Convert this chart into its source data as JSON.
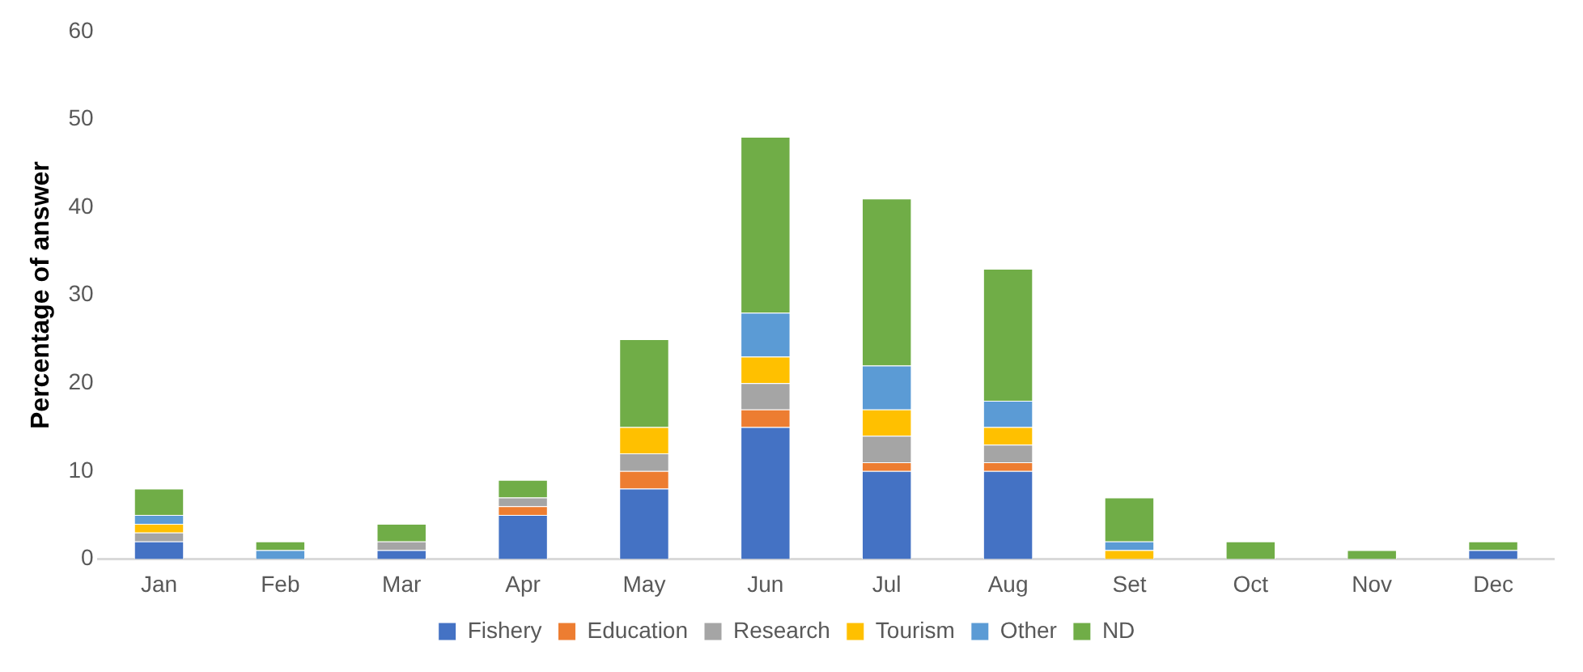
{
  "chart_data": {
    "type": "bar",
    "stacked": true,
    "ylabel": "Percentage of answer",
    "categories": [
      "Jan",
      "Feb",
      "Mar",
      "Apr",
      "May",
      "Jun",
      "Jul",
      "Aug",
      "Set",
      "Oct",
      "Nov",
      "Dec"
    ],
    "series": [
      {
        "name": "Fishery",
        "color": "#4472c4",
        "values": [
          2,
          0,
          1,
          5,
          8,
          15,
          10,
          10,
          0,
          0,
          0,
          1
        ]
      },
      {
        "name": "Education",
        "color": "#ed7d31",
        "values": [
          0,
          0,
          0,
          1,
          2,
          2,
          1,
          1,
          0,
          0,
          0,
          0
        ]
      },
      {
        "name": "Research",
        "color": "#a5a5a5",
        "values": [
          1,
          0,
          1,
          1,
          2,
          3,
          3,
          2,
          0,
          0,
          0,
          0
        ]
      },
      {
        "name": "Tourism",
        "color": "#ffc000",
        "values": [
          1,
          0,
          0,
          0,
          3,
          3,
          3,
          2,
          1,
          0,
          0,
          0
        ]
      },
      {
        "name": "Other",
        "color": "#5b9bd5",
        "values": [
          1,
          1,
          0,
          0,
          0,
          5,
          5,
          3,
          1,
          0,
          0,
          0
        ]
      },
      {
        "name": "ND",
        "color": "#70ad47",
        "values": [
          3,
          1,
          2,
          2,
          10,
          20,
          19,
          15,
          5,
          2,
          1,
          1
        ]
      }
    ],
    "ylim": [
      0,
      60
    ],
    "yticks": [
      0,
      10,
      20,
      30,
      40,
      50,
      60
    ],
    "grid": false,
    "legend": "bottom"
  }
}
